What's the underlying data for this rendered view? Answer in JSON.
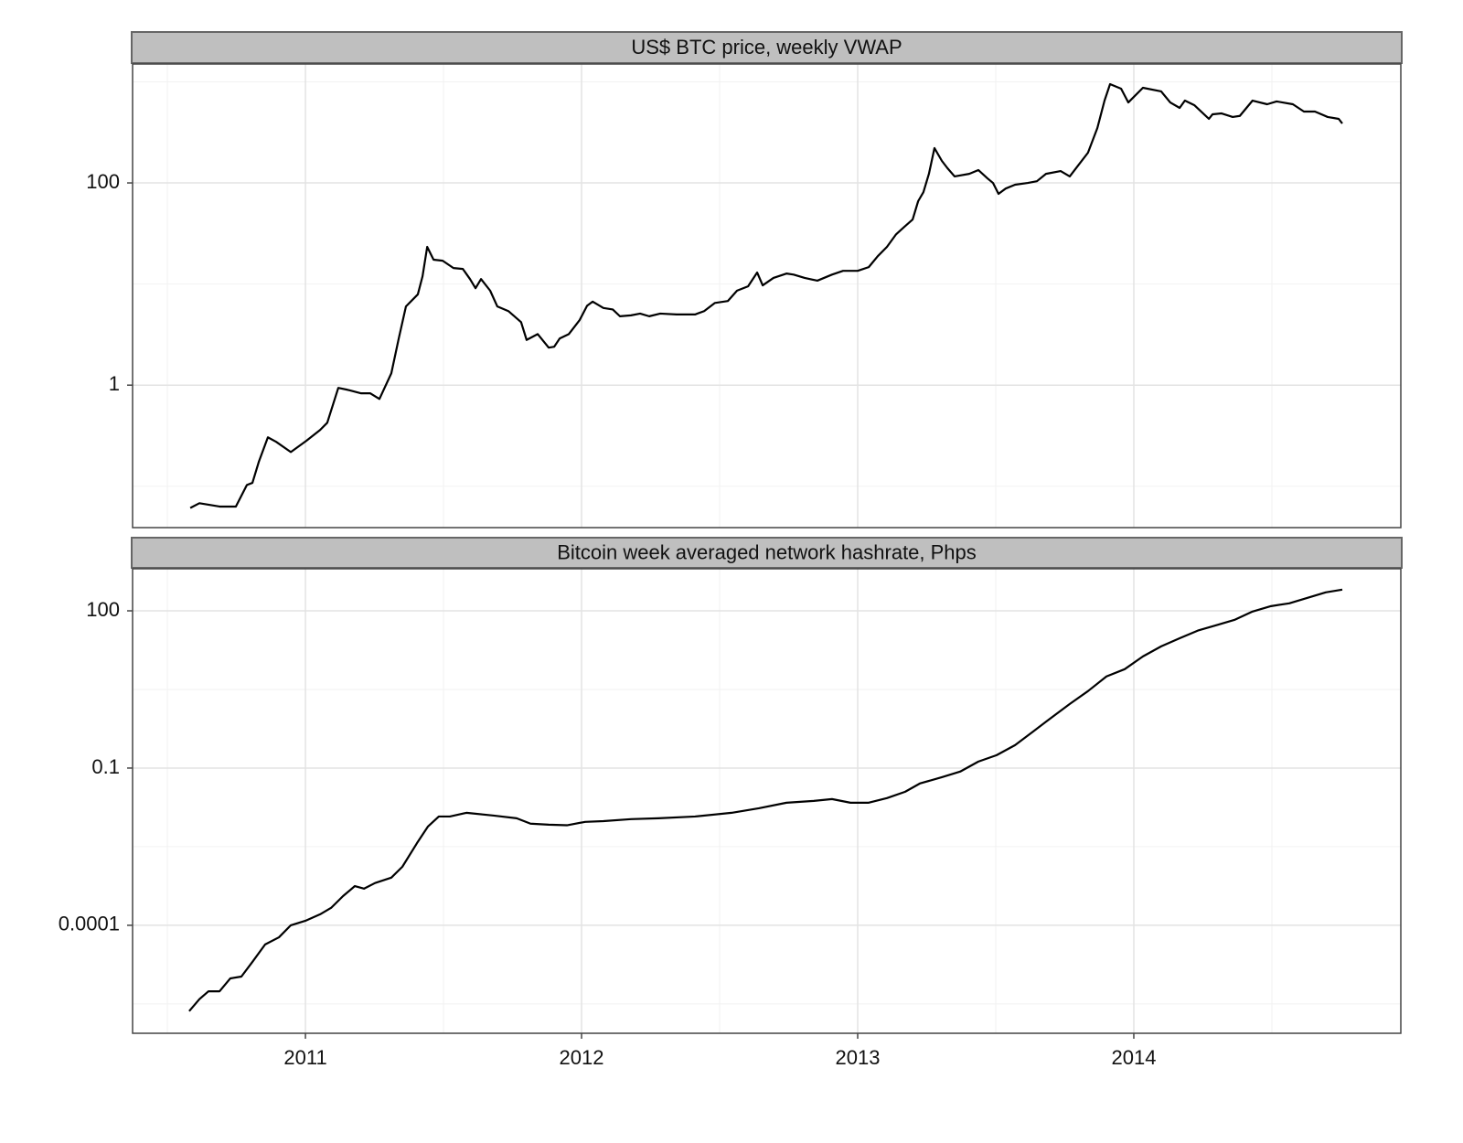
{
  "chart_data": [
    {
      "type": "line",
      "title": "US$ BTC price, weekly VWAP",
      "log": true,
      "grid": true,
      "color": "#000000",
      "xlim": [
        2010.374,
        2014.967
      ],
      "xticks": [
        2011,
        2012,
        2013,
        2014
      ],
      "ylim": [
        0.039,
        1500
      ],
      "yticks": [
        1,
        100
      ],
      "x": [
        2010.583,
        2010.616,
        2010.689,
        2010.748,
        2010.788,
        2010.808,
        2010.831,
        2010.864,
        2010.894,
        2010.947,
        2011.003,
        2011.053,
        2011.079,
        2011.119,
        2011.152,
        2011.202,
        2011.235,
        2011.268,
        2011.311,
        2011.338,
        2011.364,
        2011.407,
        2011.424,
        2011.441,
        2011.464,
        2011.497,
        2011.536,
        2011.57,
        2011.596,
        2011.616,
        2011.636,
        2011.669,
        2011.695,
        2011.735,
        2011.781,
        2011.801,
        2011.841,
        2011.881,
        2011.901,
        2011.921,
        2011.954,
        2011.993,
        2012.02,
        2012.04,
        2012.079,
        2012.113,
        2012.139,
        2012.179,
        2012.212,
        2012.245,
        2012.285,
        2012.344,
        2012.411,
        2012.444,
        2012.483,
        2012.53,
        2012.563,
        2012.603,
        2012.636,
        2012.656,
        2012.695,
        2012.742,
        2012.768,
        2012.808,
        2012.854,
        2012.907,
        2012.947,
        2013.0,
        2013.04,
        2013.073,
        2013.106,
        2013.139,
        2013.169,
        2013.199,
        2013.219,
        2013.238,
        2013.258,
        2013.278,
        2013.305,
        2013.325,
        2013.351,
        2013.404,
        2013.437,
        2013.47,
        2013.49,
        2013.51,
        2013.536,
        2013.57,
        2013.616,
        2013.649,
        2013.682,
        2013.735,
        2013.768,
        2013.801,
        2013.834,
        2013.868,
        2013.894,
        2013.914,
        2013.954,
        2013.98,
        2014.033,
        2014.099,
        2014.132,
        2014.166,
        2014.185,
        2014.219,
        2014.272,
        2014.285,
        2014.318,
        2014.358,
        2014.384,
        2014.43,
        2014.483,
        2014.517,
        2014.576,
        2014.616,
        2014.656,
        2014.702,
        2014.742,
        2014.755
      ],
      "values": [
        0.061,
        0.068,
        0.063,
        0.063,
        0.103,
        0.108,
        0.174,
        0.305,
        0.275,
        0.218,
        0.281,
        0.36,
        0.425,
        0.94,
        0.9,
        0.83,
        0.83,
        0.73,
        1.31,
        2.9,
        6.0,
        7.9,
        11.9,
        23.3,
        17.4,
        17.0,
        14.4,
        14.1,
        11.2,
        9.1,
        11.2,
        8.6,
        6.0,
        5.4,
        4.2,
        2.8,
        3.2,
        2.35,
        2.4,
        2.9,
        3.2,
        4.4,
        6.1,
        6.7,
        5.8,
        5.6,
        4.8,
        4.9,
        5.1,
        4.8,
        5.1,
        5.0,
        5.0,
        5.4,
        6.5,
        6.8,
        8.6,
        9.5,
        13.0,
        9.7,
        11.5,
        12.7,
        12.4,
        11.5,
        10.8,
        12.4,
        13.5,
        13.5,
        14.7,
        18.9,
        23.3,
        31,
        36.8,
        43.5,
        66,
        81,
        123,
        221,
        165,
        140,
        116,
        123,
        134,
        111,
        100,
        78,
        88,
        96,
        100,
        104,
        123,
        131,
        116,
        152,
        199,
        349,
        652,
        949,
        855,
        625,
        873,
        804,
        625,
        552,
        652,
        588,
        430,
        477,
        487,
        449,
        460,
        652,
        600,
        640,
        600,
        508,
        508,
        449,
        430,
        387
      ]
    },
    {
      "type": "line",
      "title": "Bitcoin week averaged network hashrate, Phps",
      "log": true,
      "grid": true,
      "color": "#000000",
      "xlim": [
        2010.374,
        2014.967
      ],
      "xticks": [
        2011,
        2012,
        2013,
        2014
      ],
      "ylim": [
        8.7e-07,
        635
      ],
      "yticks": [
        0.0001,
        0.1,
        100
      ],
      "x": [
        2010.579,
        2010.616,
        2010.649,
        2010.689,
        2010.728,
        2010.768,
        2010.808,
        2010.854,
        2010.904,
        2010.947,
        2011.0,
        2011.053,
        2011.093,
        2011.136,
        2011.179,
        2011.212,
        2011.252,
        2011.311,
        2011.351,
        2011.404,
        2011.444,
        2011.483,
        2011.523,
        2011.583,
        2011.682,
        2011.765,
        2011.815,
        2011.881,
        2011.947,
        2012.013,
        2012.079,
        2012.179,
        2012.278,
        2012.411,
        2012.543,
        2012.642,
        2012.742,
        2012.841,
        2012.907,
        2012.974,
        2013.04,
        2013.106,
        2013.172,
        2013.225,
        2013.305,
        2013.371,
        2013.437,
        2013.503,
        2013.57,
        2013.636,
        2013.702,
        2013.768,
        2013.834,
        2013.901,
        2013.967,
        2014.033,
        2014.099,
        2014.166,
        2014.232,
        2014.298,
        2014.364,
        2014.43,
        2014.497,
        2014.563,
        2014.629,
        2014.695,
        2014.755
      ],
      "values": [
        2.3e-06,
        3.9e-06,
        5.5e-06,
        5.5e-06,
        9.7e-06,
        1.05e-05,
        2e-05,
        4.3e-05,
        5.9e-05,
        0.0001,
        0.000122,
        0.000162,
        0.000215,
        0.00036,
        0.00056,
        0.0005,
        0.00064,
        0.00081,
        0.00131,
        0.0037,
        0.0077,
        0.0119,
        0.0119,
        0.014,
        0.0124,
        0.011,
        0.0087,
        0.0083,
        0.0081,
        0.0094,
        0.0097,
        0.0106,
        0.011,
        0.0119,
        0.014,
        0.0171,
        0.0218,
        0.0236,
        0.0256,
        0.0218,
        0.0218,
        0.0267,
        0.0353,
        0.0507,
        0.0671,
        0.0855,
        0.133,
        0.176,
        0.274,
        0.5,
        0.92,
        1.67,
        2.94,
        5.6,
        7.7,
        13.5,
        21,
        30,
        42,
        53,
        67,
        97,
        123,
        139,
        177,
        225,
        254
      ]
    }
  ]
}
